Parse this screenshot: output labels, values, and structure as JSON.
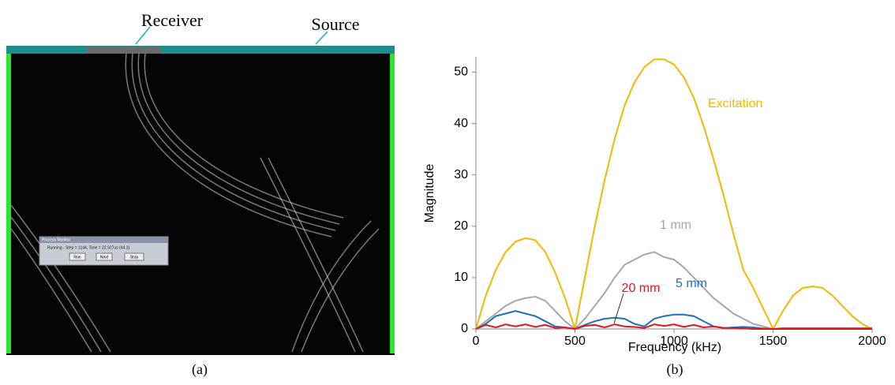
{
  "panel_a": {
    "receiver_label": "Receiver",
    "source_label": "Source",
    "caption": "(a)",
    "monitor": {
      "title": "Process Monitor",
      "status": "Running - Step = 1144, Time = 22.927us (44.3)",
      "buttons": [
        "Run",
        "Next",
        "Stop"
      ]
    }
  },
  "panel_b_caption": "(b)",
  "chart_data": {
    "type": "line",
    "xlabel": "Frequency (kHz)",
    "ylabel": "Magnitude",
    "xlim": [
      0,
      2000
    ],
    "xticks": [
      0,
      500,
      1000,
      1500,
      2000
    ],
    "ylim": [
      0,
      53
    ],
    "yticks": [
      0,
      10,
      20,
      30,
      40,
      50
    ],
    "grid": false,
    "x": [
      0,
      50,
      100,
      150,
      200,
      250,
      300,
      350,
      400,
      450,
      500,
      550,
      600,
      650,
      700,
      750,
      800,
      850,
      900,
      950,
      1000,
      1050,
      1100,
      1150,
      1200,
      1250,
      1300,
      1350,
      1400,
      1450,
      1500,
      1550,
      1600,
      1650,
      1700,
      1750,
      1800,
      1850,
      1900,
      1950,
      2000
    ],
    "series": [
      {
        "name": "Excitation",
        "color": "#f5b800",
        "values": [
          0,
          6.5,
          11.5,
          15,
          17,
          17.7,
          17.3,
          15,
          11,
          6,
          0,
          10,
          20,
          29,
          37,
          43.5,
          48,
          51,
          52.5,
          52.5,
          51.5,
          49,
          45,
          39.5,
          33,
          26,
          18.5,
          11.5,
          8,
          4,
          0,
          3.5,
          6.5,
          8,
          8.3,
          8,
          6.5,
          4.5,
          2.5,
          1,
          0
        ]
      },
      {
        "name": "1 mm",
        "color": "#a6a6a6",
        "values": [
          0,
          1.5,
          3,
          4.5,
          5.5,
          6,
          6.3,
          5.5,
          3.5,
          1.5,
          0,
          2,
          4.5,
          7,
          10,
          12.5,
          13.5,
          14.5,
          15,
          14,
          13.5,
          12,
          10,
          8,
          6,
          4.5,
          3,
          2,
          1,
          0.5,
          0,
          0.2,
          0.2,
          0.2,
          0.2,
          0.2,
          0.2,
          0.2,
          0.2,
          0.2,
          0.2
        ]
      },
      {
        "name": "5 mm",
        "color": "#1f6fb8",
        "values": [
          0,
          1,
          2.5,
          3,
          3.5,
          3,
          2.5,
          1.5,
          0.5,
          0.3,
          0,
          0.8,
          1.5,
          2,
          2.2,
          2,
          1,
          0.5,
          2,
          2.5,
          2.8,
          2.8,
          2.5,
          1.5,
          0.5,
          0.2,
          0.3,
          0.4,
          0.3,
          0.1,
          0,
          0.1,
          0.1,
          0.1,
          0.1,
          0.1,
          0.1,
          0.1,
          0.1,
          0.1,
          0.1
        ]
      },
      {
        "name": "20 mm",
        "color": "#e8141c",
        "values": [
          0,
          0.8,
          0.3,
          0.9,
          0.5,
          0.9,
          0.4,
          0.8,
          0.2,
          0.3,
          0,
          0.6,
          0.8,
          0.3,
          0.9,
          0.5,
          0.4,
          0.2,
          0.9,
          0.6,
          0.9,
          0.4,
          0.8,
          0.3,
          0.5,
          0.2,
          0.2,
          0.1,
          0,
          0,
          0,
          0,
          0,
          0,
          0,
          0,
          0,
          0,
          0,
          0,
          0
        ]
      }
    ]
  }
}
